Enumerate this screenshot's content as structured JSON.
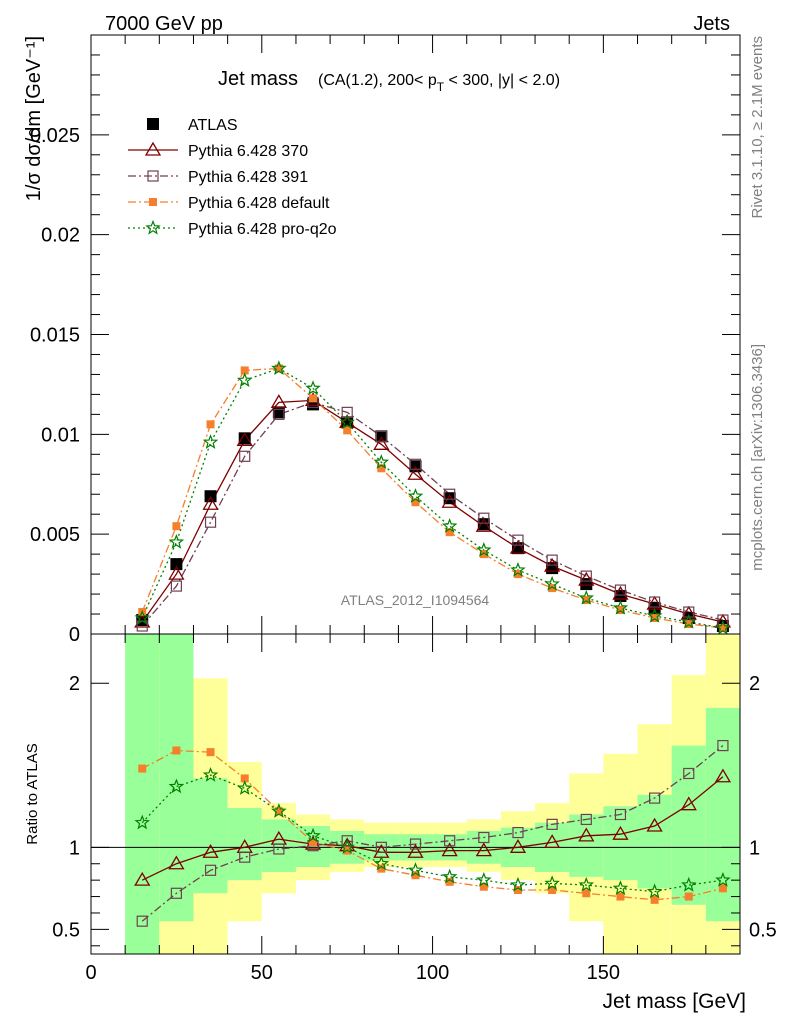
{
  "header": {
    "left": "7000 GeV pp",
    "right": "Jets",
    "side_top": "Rivet 3.1.10, ≥ 2.1M events",
    "side_bottom": "mcplots.cern.ch [arXiv:1306.3436]",
    "watermark": "ATLAS_2012_I1094564"
  },
  "chart_data": [
    {
      "type": "line",
      "panel": "main",
      "title": "Jet mass",
      "subtitle": "(CA(1.2), 200< p_T < 300, |y| < 2.0)",
      "ylabel": "1/σ dσ/dm [GeV⁻¹]",
      "xlabel": "",
      "xlim": [
        0,
        190
      ],
      "ylim": [
        0,
        0.03
      ],
      "y_ticks": [
        "0",
        "0.005",
        "0.01",
        "0.015",
        "0.02",
        "0.025"
      ],
      "x": [
        15,
        25,
        35,
        45,
        55,
        65,
        75,
        85,
        95,
        105,
        115,
        125,
        135,
        145,
        155,
        165,
        175,
        185
      ],
      "legend_position": "top-left",
      "series": [
        {
          "name": "ATLAS",
          "color": "#000000",
          "marker": "square-filled",
          "style": "none",
          "values": [
            0.0007,
            0.0035,
            0.0069,
            0.0098,
            0.0111,
            0.0115,
            0.0106,
            0.0099,
            0.0084,
            0.0068,
            0.0055,
            0.0043,
            0.0033,
            0.0025,
            0.0019,
            0.0013,
            0.0008,
            0.0004
          ]
        },
        {
          "name": "Pythia 6.428 370",
          "color": "#7f0000",
          "marker": "triangle-open",
          "style": "solid",
          "values": [
            0.0006,
            0.003,
            0.0065,
            0.0097,
            0.0116,
            0.0117,
            0.0106,
            0.0095,
            0.008,
            0.0066,
            0.0054,
            0.0043,
            0.0034,
            0.0027,
            0.002,
            0.0015,
            0.001,
            0.0006
          ]
        },
        {
          "name": "Pythia 6.428 391",
          "color": "#704050",
          "marker": "square-open",
          "style": "dashdot",
          "values": [
            0.0004,
            0.0024,
            0.0056,
            0.0089,
            0.011,
            0.0116,
            0.0111,
            0.0099,
            0.0085,
            0.007,
            0.0058,
            0.0047,
            0.0037,
            0.0029,
            0.0022,
            0.0016,
            0.0011,
            0.0007
          ]
        },
        {
          "name": "Pythia 6.428 default",
          "color": "#f57f2a",
          "marker": "square-filled-small",
          "style": "dashdot",
          "values": [
            0.0011,
            0.0054,
            0.0105,
            0.0132,
            0.0133,
            0.0118,
            0.0102,
            0.0083,
            0.0066,
            0.0051,
            0.004,
            0.003,
            0.0023,
            0.0017,
            0.0012,
            0.0008,
            0.0005,
            0.0003
          ]
        },
        {
          "name": "Pythia 6.428 pro-q2o",
          "color": "#008000",
          "marker": "star",
          "style": "dotted",
          "values": [
            0.0008,
            0.0046,
            0.0096,
            0.0127,
            0.0133,
            0.0123,
            0.0106,
            0.0086,
            0.0069,
            0.0054,
            0.0042,
            0.0032,
            0.0025,
            0.0018,
            0.0013,
            0.0009,
            0.0006,
            0.0003
          ]
        }
      ]
    },
    {
      "type": "line",
      "panel": "ratio",
      "ylabel": "Ratio to ATLAS",
      "xlabel": "Jet mass [GeV]",
      "xlim": [
        0,
        190
      ],
      "ylim": [
        0.35,
        2.3
      ],
      "x_ticks": [
        "0",
        "50",
        "100",
        "150"
      ],
      "y_ticks": [
        "0.5",
        "1",
        "2"
      ],
      "x": [
        15,
        25,
        35,
        45,
        55,
        65,
        75,
        85,
        95,
        105,
        115,
        125,
        135,
        145,
        155,
        165,
        175,
        185
      ],
      "bands": {
        "bin_edges": [
          10,
          20,
          30,
          40,
          50,
          60,
          70,
          80,
          90,
          100,
          110,
          120,
          130,
          140,
          150,
          160,
          170,
          180,
          190
        ],
        "inner_color": "#99ff99",
        "outer_color": "#ffff99",
        "inner_low": [
          0.35,
          0.55,
          0.72,
          0.8,
          0.85,
          0.88,
          0.9,
          0.92,
          0.92,
          0.92,
          0.9,
          0.88,
          0.85,
          0.82,
          0.8,
          0.75,
          0.65,
          0.55
        ],
        "inner_high": [
          2.3,
          2.3,
          1.42,
          1.24,
          1.17,
          1.13,
          1.1,
          1.08,
          1.08,
          1.08,
          1.1,
          1.12,
          1.15,
          1.2,
          1.25,
          1.32,
          1.62,
          1.85
        ],
        "outer_low": [
          0.35,
          0.35,
          0.35,
          0.55,
          0.72,
          0.8,
          0.85,
          0.88,
          0.88,
          0.88,
          0.85,
          0.8,
          0.72,
          0.55,
          0.35,
          0.35,
          0.35,
          0.35
        ],
        "outer_high": [
          2.3,
          2.3,
          2.03,
          1.52,
          1.27,
          1.2,
          1.17,
          1.15,
          1.15,
          1.15,
          1.17,
          1.22,
          1.27,
          1.45,
          1.57,
          1.75,
          2.05,
          2.3
        ]
      },
      "series": [
        {
          "name": "Pythia 6.428 370",
          "color": "#7f0000",
          "marker": "triangle-open",
          "style": "solid",
          "values": [
            0.8,
            0.9,
            0.97,
            1.0,
            1.05,
            1.02,
            1.01,
            0.97,
            0.97,
            0.98,
            0.98,
            1.0,
            1.03,
            1.07,
            1.08,
            1.13,
            1.26,
            1.43
          ]
        },
        {
          "name": "Pythia 6.428 391",
          "color": "#704050",
          "marker": "square-open",
          "style": "dashdot",
          "values": [
            0.55,
            0.72,
            0.86,
            0.94,
            0.99,
            1.01,
            1.04,
            1.0,
            1.02,
            1.04,
            1.06,
            1.09,
            1.14,
            1.17,
            1.2,
            1.3,
            1.45,
            1.62
          ]
        },
        {
          "name": "Pythia 6.428 default",
          "color": "#f57f2a",
          "marker": "square-filled-small",
          "style": "dashdot",
          "values": [
            1.48,
            1.59,
            1.58,
            1.42,
            1.22,
            1.03,
            0.98,
            0.87,
            0.83,
            0.79,
            0.76,
            0.74,
            0.74,
            0.72,
            0.7,
            0.68,
            0.7,
            0.75
          ]
        },
        {
          "name": "Pythia 6.428 pro-q2o",
          "color": "#008000",
          "marker": "star",
          "style": "dotted",
          "values": [
            1.15,
            1.37,
            1.44,
            1.36,
            1.22,
            1.07,
            1.0,
            0.9,
            0.86,
            0.82,
            0.8,
            0.77,
            0.78,
            0.77,
            0.75,
            0.73,
            0.77,
            0.8
          ]
        }
      ]
    }
  ]
}
